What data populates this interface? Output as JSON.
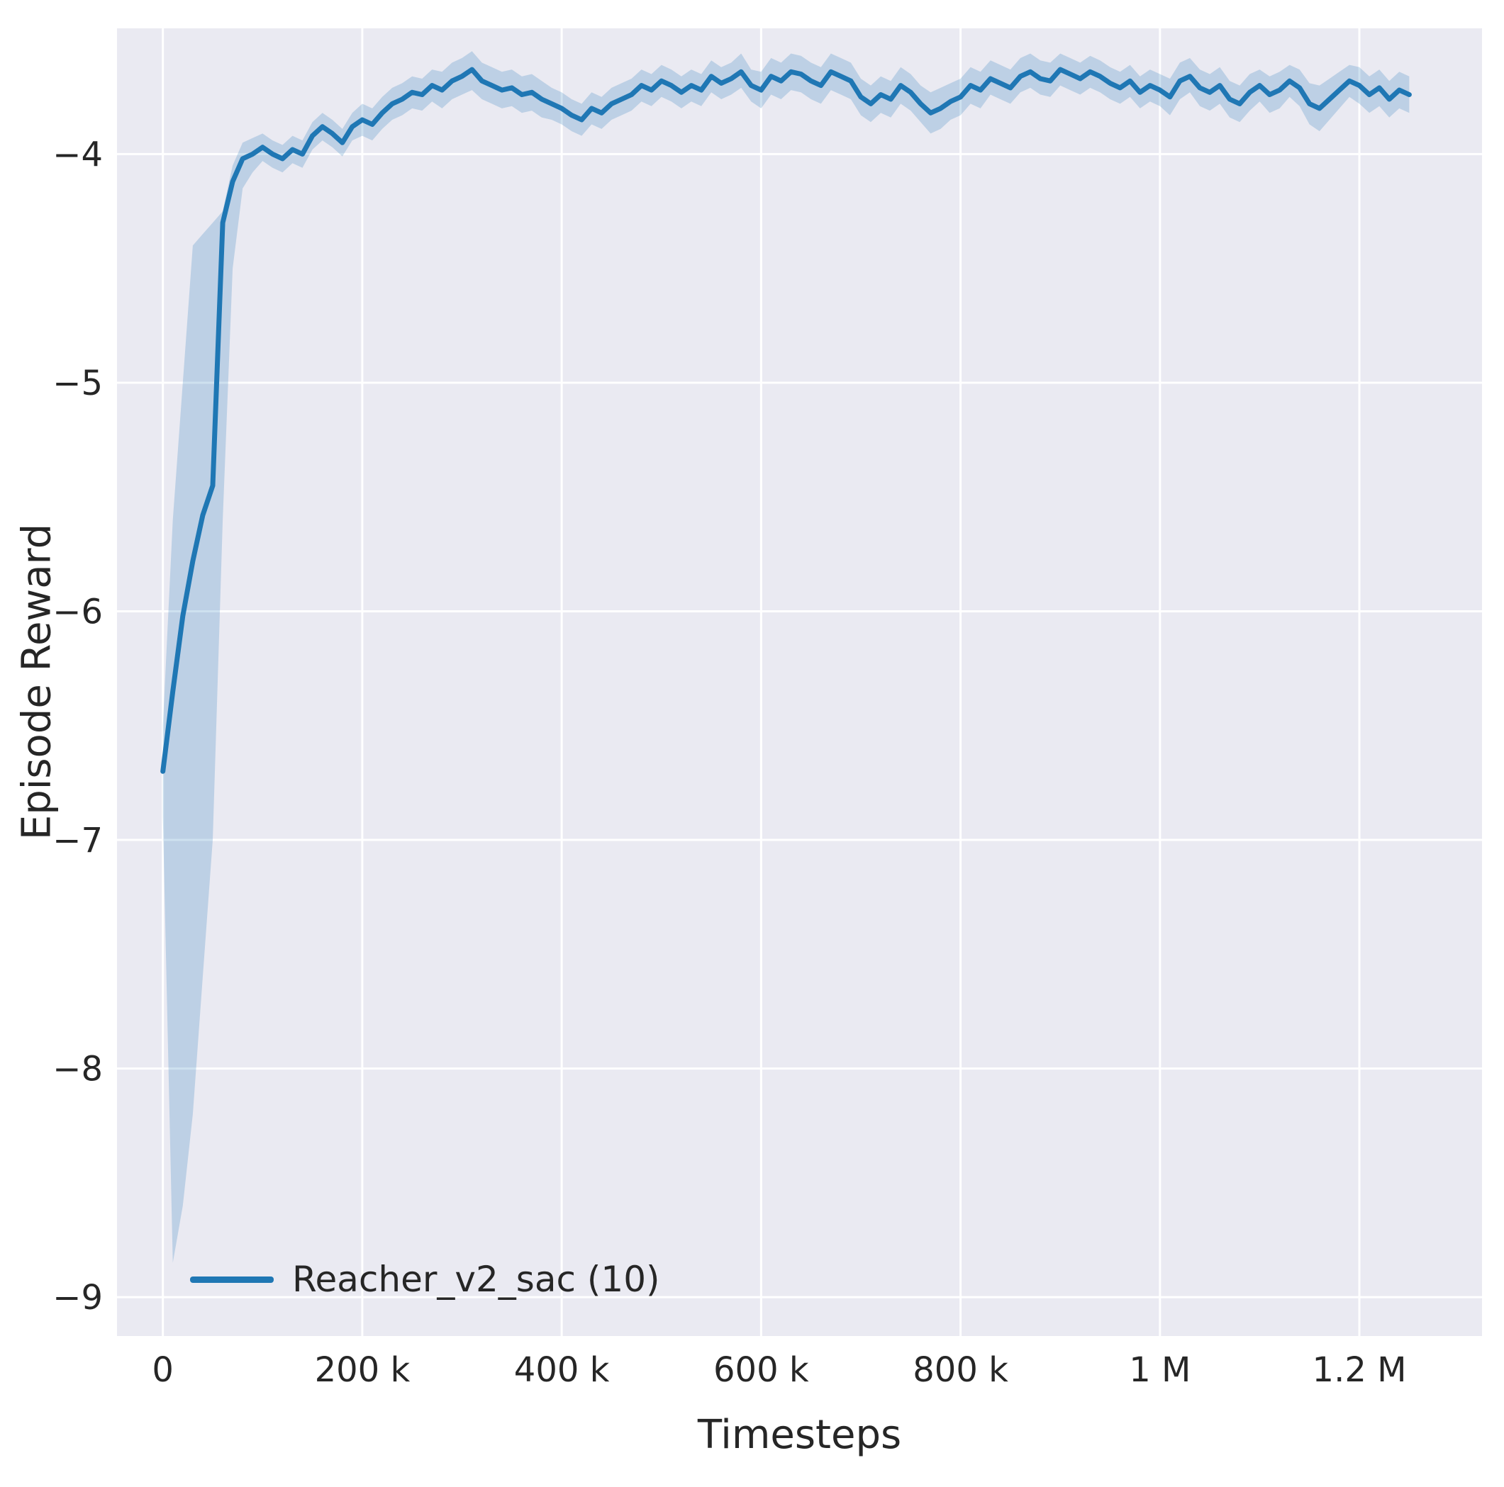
{
  "chart_data": {
    "type": "line",
    "title": "",
    "xlabel": "Timesteps",
    "ylabel": "Episode Reward",
    "xlim": [
      -46000,
      1323000
    ],
    "ylim": [
      -9.17,
      -3.45
    ],
    "grid": true,
    "legend_position": "lower left",
    "xticks": {
      "values": [
        0,
        200000,
        400000,
        600000,
        800000,
        1000000,
        1200000
      ],
      "labels": [
        "0",
        "200 k",
        "400 k",
        "600 k",
        "800 k",
        "1 M",
        "1.2 M"
      ]
    },
    "yticks": {
      "values": [
        -4,
        -5,
        -6,
        -7,
        -8,
        -9
      ],
      "labels": [
        "−4",
        "−5",
        "−6",
        "−7",
        "−8",
        "−9"
      ]
    },
    "colors": {
      "line": "#1f77b4",
      "band": "#1f77b4",
      "band_opacity": 0.22,
      "background": "#eaeaf2",
      "grid": "#ffffff",
      "text": "#262626"
    },
    "series": [
      {
        "name": "Reacher_v2_sac (10)",
        "x": [
          0,
          10000,
          20000,
          30000,
          40000,
          50000,
          60000,
          70000,
          80000,
          90000,
          100000,
          110000,
          120000,
          130000,
          140000,
          150000,
          160000,
          170000,
          180000,
          190000,
          200000,
          210000,
          220000,
          230000,
          240000,
          250000,
          260000,
          270000,
          280000,
          290000,
          300000,
          310000,
          320000,
          330000,
          340000,
          350000,
          360000,
          370000,
          380000,
          390000,
          400000,
          410000,
          420000,
          430000,
          440000,
          450000,
          460000,
          470000,
          480000,
          490000,
          500000,
          510000,
          520000,
          530000,
          540000,
          550000,
          560000,
          570000,
          580000,
          590000,
          600000,
          610000,
          620000,
          630000,
          640000,
          650000,
          660000,
          670000,
          680000,
          690000,
          700000,
          710000,
          720000,
          730000,
          740000,
          750000,
          760000,
          770000,
          780000,
          790000,
          800000,
          810000,
          820000,
          830000,
          840000,
          850000,
          860000,
          870000,
          880000,
          890000,
          900000,
          910000,
          920000,
          930000,
          940000,
          950000,
          960000,
          970000,
          980000,
          990000,
          1000000,
          1010000,
          1020000,
          1030000,
          1040000,
          1050000,
          1060000,
          1070000,
          1080000,
          1090000,
          1100000,
          1110000,
          1120000,
          1130000,
          1140000,
          1150000,
          1160000,
          1170000,
          1180000,
          1190000,
          1200000,
          1210000,
          1220000,
          1230000,
          1240000,
          1250000
        ],
        "y": [
          -6.7,
          -6.35,
          -6.02,
          -5.78,
          -5.58,
          -5.45,
          -4.3,
          -4.12,
          -4.02,
          -4.0,
          -3.97,
          -4.0,
          -4.02,
          -3.98,
          -4.0,
          -3.92,
          -3.88,
          -3.91,
          -3.95,
          -3.88,
          -3.85,
          -3.87,
          -3.82,
          -3.78,
          -3.76,
          -3.73,
          -3.74,
          -3.7,
          -3.72,
          -3.68,
          -3.66,
          -3.63,
          -3.68,
          -3.7,
          -3.72,
          -3.71,
          -3.74,
          -3.73,
          -3.76,
          -3.78,
          -3.8,
          -3.83,
          -3.85,
          -3.8,
          -3.82,
          -3.78,
          -3.76,
          -3.74,
          -3.7,
          -3.72,
          -3.68,
          -3.7,
          -3.73,
          -3.7,
          -3.72,
          -3.66,
          -3.69,
          -3.67,
          -3.64,
          -3.7,
          -3.72,
          -3.66,
          -3.68,
          -3.64,
          -3.65,
          -3.68,
          -3.7,
          -3.64,
          -3.66,
          -3.68,
          -3.75,
          -3.78,
          -3.74,
          -3.76,
          -3.7,
          -3.73,
          -3.78,
          -3.82,
          -3.8,
          -3.77,
          -3.75,
          -3.7,
          -3.72,
          -3.67,
          -3.69,
          -3.71,
          -3.66,
          -3.64,
          -3.67,
          -3.68,
          -3.63,
          -3.65,
          -3.67,
          -3.64,
          -3.66,
          -3.69,
          -3.71,
          -3.68,
          -3.73,
          -3.7,
          -3.72,
          -3.75,
          -3.68,
          -3.66,
          -3.71,
          -3.73,
          -3.7,
          -3.76,
          -3.78,
          -3.73,
          -3.7,
          -3.74,
          -3.72,
          -3.68,
          -3.71,
          -3.78,
          -3.8,
          -3.76,
          -3.72,
          -3.68,
          -3.7,
          -3.74,
          -3.71,
          -3.76,
          -3.72,
          -3.74
        ],
        "band_lower": [
          -6.9,
          -8.85,
          -8.6,
          -8.2,
          -7.6,
          -7.0,
          -5.6,
          -4.5,
          -4.15,
          -4.08,
          -4.03,
          -4.06,
          -4.08,
          -4.04,
          -4.06,
          -3.98,
          -3.94,
          -3.97,
          -4.01,
          -3.94,
          -3.92,
          -3.94,
          -3.89,
          -3.85,
          -3.83,
          -3.8,
          -3.81,
          -3.77,
          -3.8,
          -3.76,
          -3.74,
          -3.72,
          -3.76,
          -3.78,
          -3.8,
          -3.79,
          -3.82,
          -3.81,
          -3.84,
          -3.85,
          -3.87,
          -3.9,
          -3.92,
          -3.87,
          -3.89,
          -3.85,
          -3.83,
          -3.81,
          -3.77,
          -3.79,
          -3.75,
          -3.77,
          -3.8,
          -3.77,
          -3.79,
          -3.73,
          -3.76,
          -3.74,
          -3.71,
          -3.77,
          -3.8,
          -3.74,
          -3.76,
          -3.72,
          -3.73,
          -3.76,
          -3.78,
          -3.72,
          -3.74,
          -3.76,
          -3.83,
          -3.86,
          -3.82,
          -3.84,
          -3.78,
          -3.81,
          -3.86,
          -3.91,
          -3.89,
          -3.85,
          -3.83,
          -3.78,
          -3.8,
          -3.74,
          -3.76,
          -3.78,
          -3.73,
          -3.71,
          -3.74,
          -3.75,
          -3.7,
          -3.72,
          -3.74,
          -3.71,
          -3.73,
          -3.76,
          -3.78,
          -3.75,
          -3.8,
          -3.77,
          -3.79,
          -3.83,
          -3.76,
          -3.73,
          -3.79,
          -3.81,
          -3.78,
          -3.84,
          -3.86,
          -3.81,
          -3.77,
          -3.82,
          -3.8,
          -3.75,
          -3.79,
          -3.87,
          -3.9,
          -3.85,
          -3.8,
          -3.75,
          -3.78,
          -3.82,
          -3.79,
          -3.84,
          -3.8,
          -3.82
        ],
        "band_upper": [
          -6.5,
          -5.6,
          -5.0,
          -4.4,
          -4.35,
          -4.3,
          -4.25,
          -4.05,
          -3.95,
          -3.93,
          -3.91,
          -3.94,
          -3.96,
          -3.92,
          -3.94,
          -3.86,
          -3.82,
          -3.85,
          -3.89,
          -3.82,
          -3.78,
          -3.8,
          -3.75,
          -3.71,
          -3.69,
          -3.66,
          -3.67,
          -3.63,
          -3.64,
          -3.6,
          -3.58,
          -3.55,
          -3.6,
          -3.62,
          -3.64,
          -3.63,
          -3.66,
          -3.65,
          -3.68,
          -3.71,
          -3.73,
          -3.76,
          -3.78,
          -3.73,
          -3.75,
          -3.71,
          -3.69,
          -3.67,
          -3.63,
          -3.65,
          -3.61,
          -3.63,
          -3.66,
          -3.63,
          -3.65,
          -3.59,
          -3.62,
          -3.6,
          -3.56,
          -3.63,
          -3.64,
          -3.58,
          -3.6,
          -3.56,
          -3.57,
          -3.6,
          -3.62,
          -3.56,
          -3.58,
          -3.6,
          -3.67,
          -3.7,
          -3.66,
          -3.68,
          -3.62,
          -3.65,
          -3.7,
          -3.73,
          -3.71,
          -3.69,
          -3.67,
          -3.62,
          -3.64,
          -3.59,
          -3.61,
          -3.63,
          -3.58,
          -3.56,
          -3.59,
          -3.6,
          -3.56,
          -3.58,
          -3.6,
          -3.57,
          -3.59,
          -3.62,
          -3.64,
          -3.61,
          -3.66,
          -3.63,
          -3.65,
          -3.67,
          -3.6,
          -3.58,
          -3.63,
          -3.65,
          -3.62,
          -3.68,
          -3.7,
          -3.65,
          -3.63,
          -3.66,
          -3.64,
          -3.61,
          -3.63,
          -3.69,
          -3.7,
          -3.67,
          -3.64,
          -3.61,
          -3.62,
          -3.66,
          -3.63,
          -3.68,
          -3.64,
          -3.66
        ]
      }
    ]
  }
}
